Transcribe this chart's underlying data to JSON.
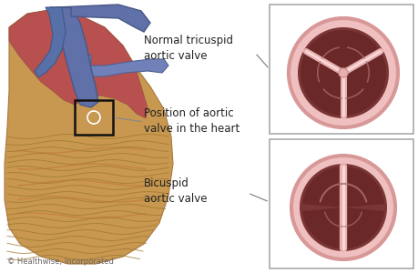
{
  "bg_color": "#ffffff",
  "valve_outer_color": "#e8a8a8",
  "valve_ring_color": "#d48888",
  "valve_dark_color": "#7a3535",
  "valve_medium_color": "#8b4545",
  "valve_seam_light": "#e8b8b8",
  "valve_seam_lighter": "#f5d8d8",
  "text_color": "#222222",
  "label_tricuspid": "Normal tricuspid\naortic valve",
  "label_position": "Position of aortic\nvalve in the heart",
  "label_bicuspid": "Bicuspid\naortic valve",
  "copyright": "© Healthwise, Incorporated",
  "line_color": "#888888",
  "heart_muscle_color": "#c8935a",
  "heart_upper_color": "#b05050",
  "aorta_color": "#6070a8",
  "aorta_dark": "#485888",
  "heart_yellow": "#c8a055",
  "heart_red": "#b04040"
}
